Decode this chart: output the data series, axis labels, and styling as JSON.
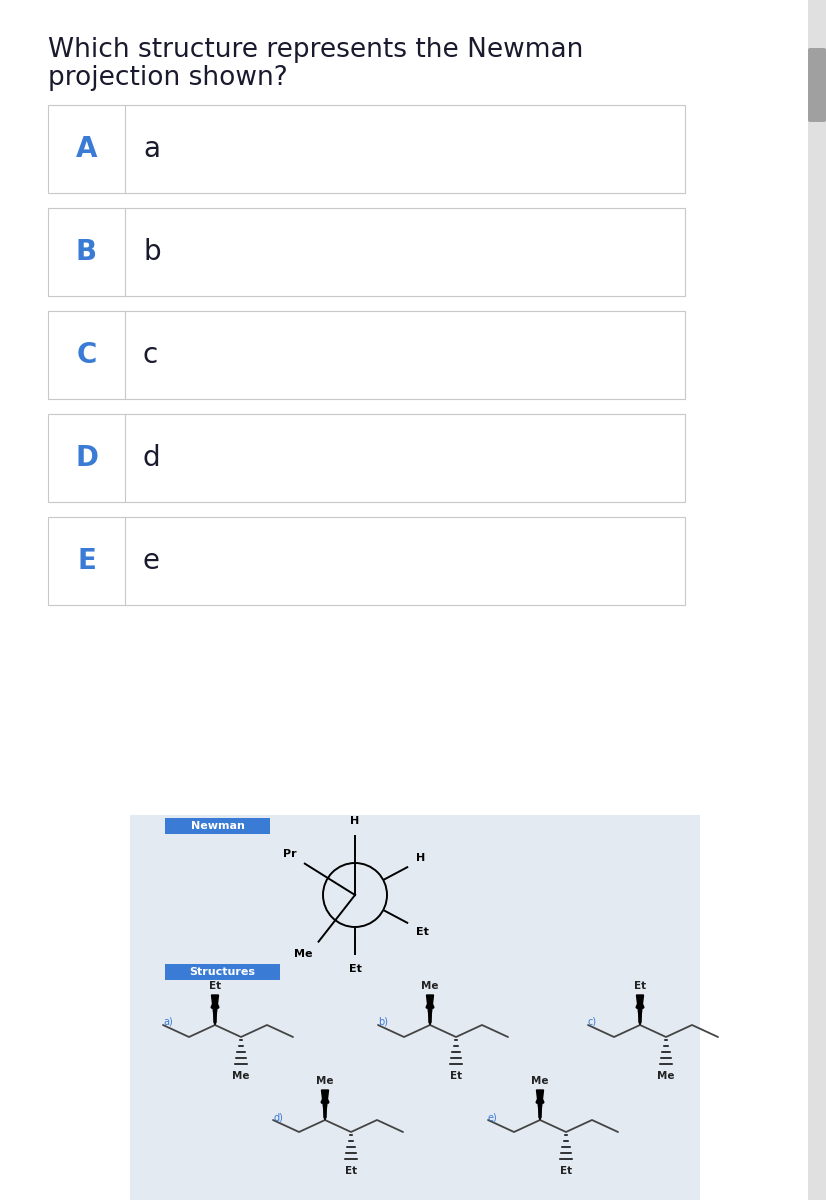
{
  "title_line1": "Which structure represents the Newman",
  "title_line2": "projection shown?",
  "title_color": "#1a1a2e",
  "title_fontsize": 19,
  "bg_color": "#ffffff",
  "bottom_bg_color": "#e4eaf2",
  "options": [
    {
      "letter": "A",
      "text": "a"
    },
    {
      "letter": "B",
      "text": "b"
    },
    {
      "letter": "C",
      "text": "c"
    },
    {
      "letter": "D",
      "text": "d"
    },
    {
      "letter": "E",
      "text": "e"
    }
  ],
  "option_letter_color": "#3a7bd5",
  "option_text_color": "#1a1a2e",
  "option_letter_fontsize": 20,
  "option_text_fontsize": 20,
  "box_border_color": "#c8c8c8",
  "blue_label_bg": "#3a7bd5",
  "blue_label_text": "#ffffff",
  "blue_label_fontsize": 8,
  "newman_label": "Newman",
  "structures_label": "Structures",
  "sub_label_color": "#3a7bd5",
  "sub_label_fontsize": 7,
  "scrollbar_bg": "#e0e0e0",
  "scrollbar_thumb": "#a0a0a0"
}
